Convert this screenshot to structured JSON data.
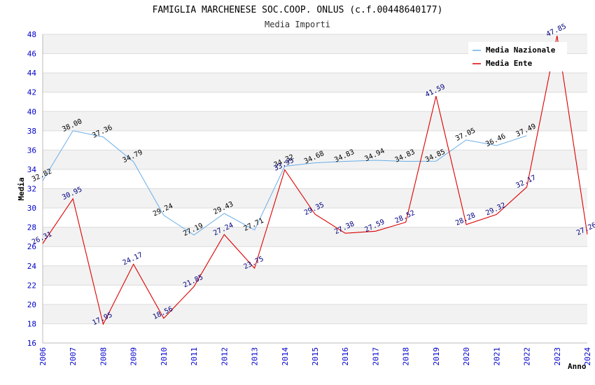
{
  "chart_data": {
    "type": "line",
    "title": "FAMIGLIA MARCHENESE SOC.COOP. ONLUS (c.f.00448640177)",
    "subtitle": "Media Importi",
    "xlabel": "Anno",
    "ylabel": "Media",
    "ylim": [
      16,
      48
    ],
    "y_step": 2,
    "grid": true,
    "legend_position": "top-right",
    "x": [
      "2006",
      "2007",
      "2008",
      "2009",
      "2010",
      "2011",
      "2012",
      "2013",
      "2014",
      "2015",
      "2016",
      "2017",
      "2018",
      "2019",
      "2020",
      "2021",
      "2022",
      "2023",
      "2024"
    ],
    "y_ticks": [
      "16",
      "18",
      "20",
      "22",
      "24",
      "26",
      "28",
      "30",
      "32",
      "34",
      "36",
      "38",
      "40",
      "42",
      "44",
      "46",
      "48"
    ],
    "series": [
      {
        "name": "Media Nazionale",
        "color": "#6aaee8",
        "label_color": "#000000",
        "values": [
          32.82,
          38.0,
          37.36,
          34.79,
          29.24,
          27.19,
          29.43,
          27.71,
          34.32,
          34.68,
          34.83,
          34.94,
          34.83,
          34.85,
          37.05,
          36.46,
          37.49,
          null,
          null
        ],
        "labels": [
          "32.82",
          "38.00",
          "37.36",
          "34.79",
          "29.24",
          "27.19",
          "29.43",
          "27.71",
          "34.32",
          "34.68",
          "34.83",
          "34.94",
          "34.83",
          "34.85",
          "37.05",
          "36.46",
          "37.49",
          "",
          ""
        ]
      },
      {
        "name": "Media Ente",
        "color": "#dd0000",
        "label_color": "#000080",
        "values": [
          26.31,
          30.95,
          17.95,
          24.17,
          18.56,
          21.85,
          27.24,
          23.75,
          33.95,
          29.35,
          27.38,
          27.59,
          28.52,
          41.59,
          28.28,
          29.32,
          32.17,
          47.85,
          27.26
        ],
        "labels": [
          "26.31",
          "30.95",
          "17.95",
          "24.17",
          "18.56",
          "21.85",
          "27.24",
          "23.75",
          "33.95",
          "29.35",
          "27.38",
          "27.59",
          "28.52",
          "41.59",
          "28.28",
          "29.32",
          "32.17",
          "47.85",
          "27.26"
        ]
      }
    ]
  }
}
